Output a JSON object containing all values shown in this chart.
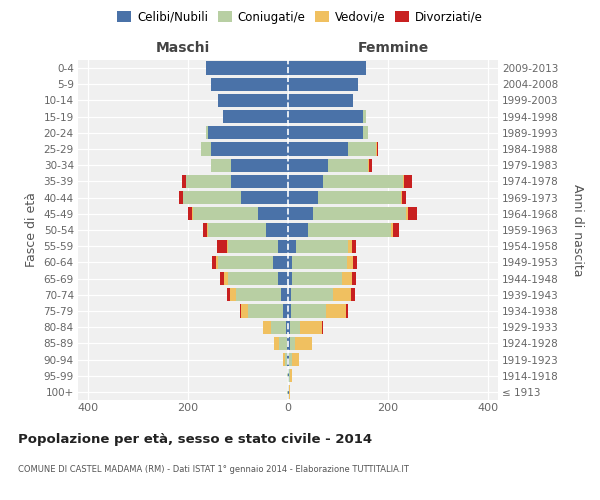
{
  "age_groups": [
    "100+",
    "95-99",
    "90-94",
    "85-89",
    "80-84",
    "75-79",
    "70-74",
    "65-69",
    "60-64",
    "55-59",
    "50-54",
    "45-49",
    "40-44",
    "35-39",
    "30-34",
    "25-29",
    "20-24",
    "15-19",
    "10-14",
    "5-9",
    "0-4"
  ],
  "birth_years": [
    "≤ 1913",
    "1914-1918",
    "1919-1923",
    "1924-1928",
    "1929-1933",
    "1934-1938",
    "1939-1943",
    "1944-1948",
    "1949-1953",
    "1954-1958",
    "1959-1963",
    "1964-1968",
    "1969-1973",
    "1974-1978",
    "1979-1983",
    "1984-1988",
    "1989-1993",
    "1994-1998",
    "1999-2003",
    "2004-2008",
    "2009-2013"
  ],
  "colors": {
    "celibi": "#4a72a8",
    "coniugati": "#b8cfa3",
    "vedovi": "#f0c060",
    "divorziati": "#c82020"
  },
  "maschi": {
    "celibi": [
      1,
      1,
      2,
      3,
      5,
      10,
      15,
      20,
      30,
      20,
      45,
      60,
      95,
      115,
      115,
      155,
      160,
      130,
      140,
      155,
      165
    ],
    "coniugati": [
      1,
      1,
      5,
      15,
      30,
      70,
      90,
      100,
      110,
      100,
      115,
      130,
      115,
      90,
      40,
      20,
      5,
      1,
      0,
      0,
      0
    ],
    "vedovi": [
      0,
      1,
      3,
      10,
      15,
      15,
      12,
      8,
      5,
      3,
      2,
      2,
      1,
      0,
      0,
      0,
      0,
      0,
      0,
      0,
      0
    ],
    "divorziati": [
      0,
      0,
      0,
      0,
      0,
      2,
      5,
      8,
      8,
      20,
      8,
      8,
      8,
      8,
      0,
      0,
      0,
      0,
      0,
      0,
      0
    ]
  },
  "femmine": {
    "celibi": [
      1,
      1,
      2,
      3,
      3,
      5,
      5,
      8,
      8,
      15,
      40,
      50,
      60,
      70,
      80,
      120,
      150,
      150,
      130,
      140,
      155
    ],
    "coniugati": [
      0,
      2,
      5,
      10,
      20,
      70,
      85,
      100,
      110,
      105,
      165,
      185,
      165,
      160,
      80,
      55,
      10,
      5,
      0,
      0,
      0
    ],
    "vedovi": [
      2,
      5,
      15,
      35,
      45,
      40,
      35,
      20,
      12,
      8,
      5,
      5,
      2,
      2,
      2,
      2,
      0,
      0,
      0,
      0,
      0
    ],
    "divorziati": [
      0,
      0,
      0,
      0,
      2,
      5,
      8,
      8,
      8,
      8,
      12,
      18,
      8,
      15,
      5,
      2,
      0,
      0,
      0,
      0,
      0
    ]
  },
  "title": "Popolazione per età, sesso e stato civile - 2014",
  "subtitle": "COMUNE DI CASTEL MADAMA (RM) - Dati ISTAT 1° gennaio 2014 - Elaborazione TUTTITALIA.IT",
  "maschi_label": "Maschi",
  "femmine_label": "Femmine",
  "ylabel_left": "Fasce di età",
  "ylabel_right": "Anni di nascita",
  "xlim": 420,
  "legend_labels": [
    "Celibi/Nubili",
    "Coniugati/e",
    "Vedovi/e",
    "Divorziati/e"
  ],
  "bg_color": "#f0f0f0"
}
